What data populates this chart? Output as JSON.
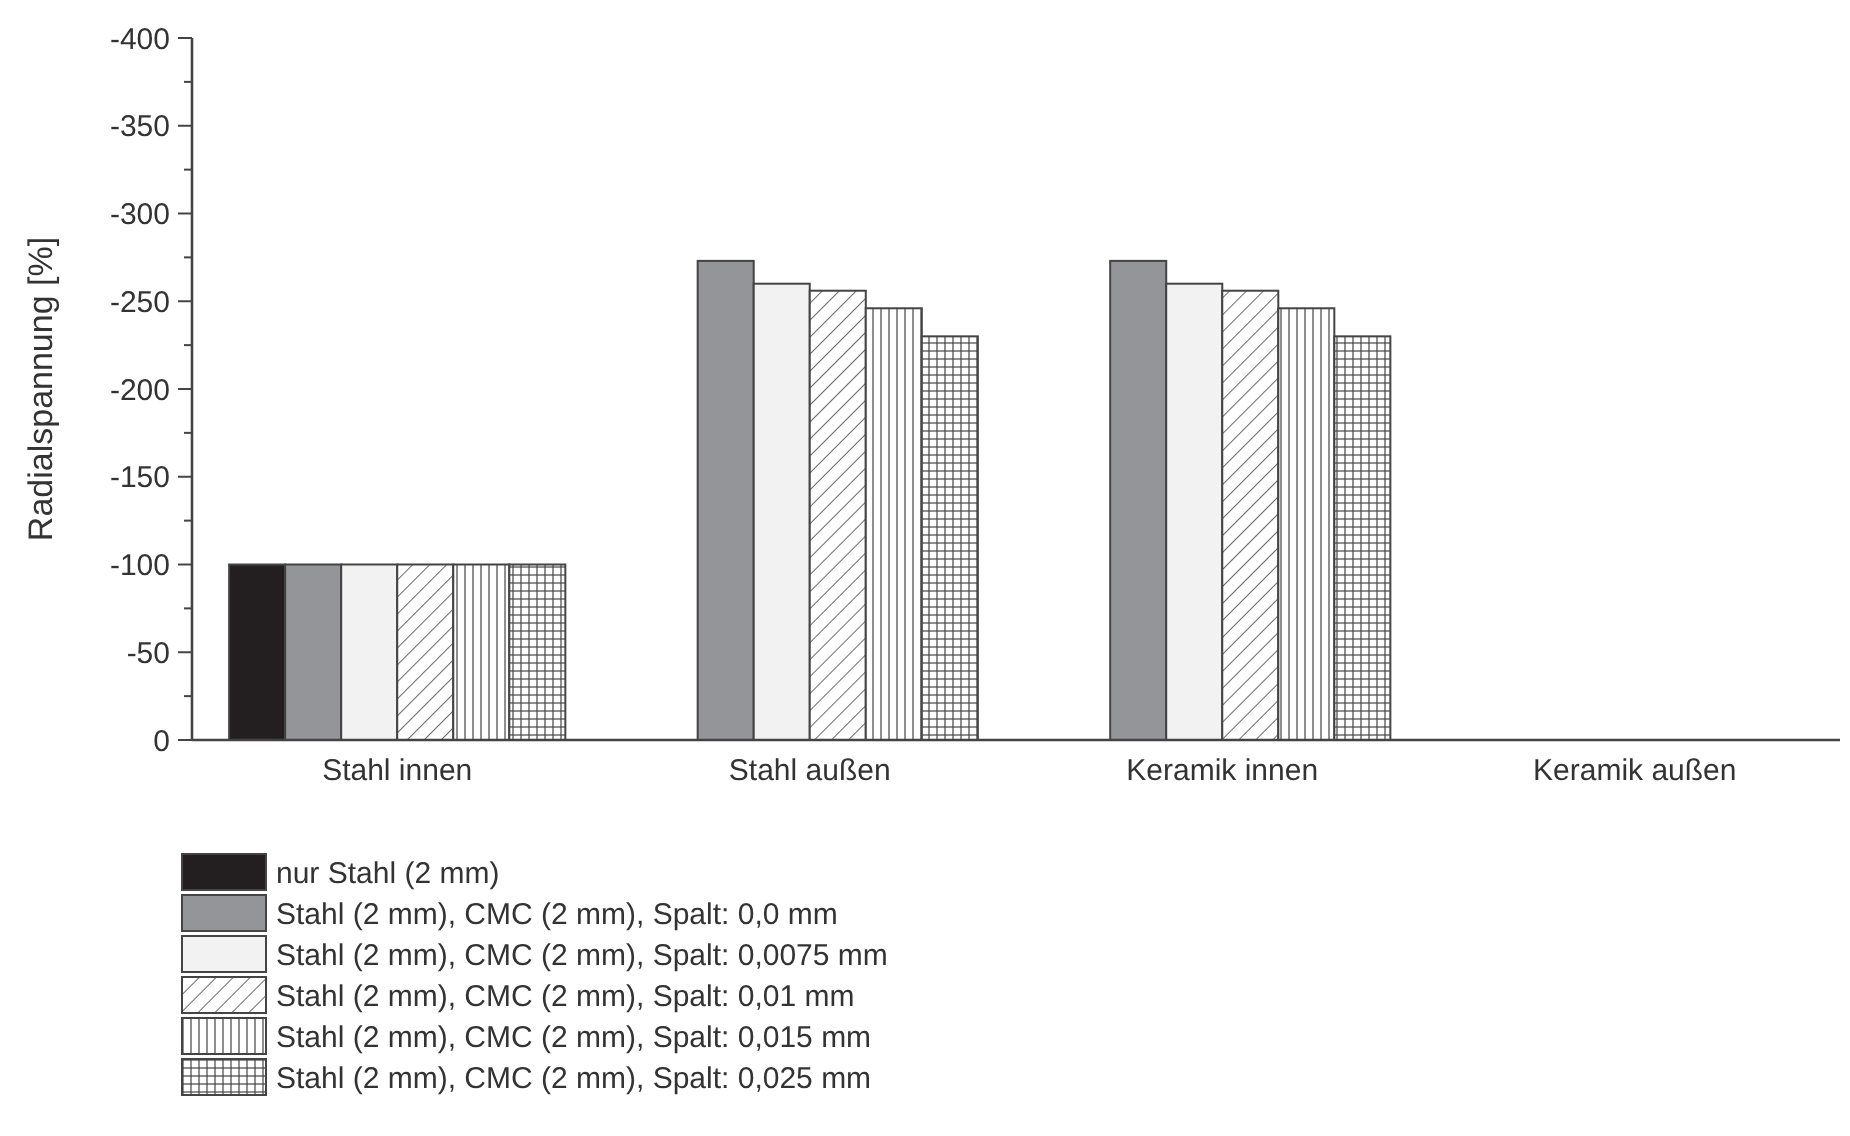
{
  "chart_data": {
    "type": "bar",
    "ylabel": "Radialspannung [%]",
    "categories": [
      "Stahl innen",
      "Stahl außen",
      "Keramik innen",
      "Keramik außen"
    ],
    "series": [
      {
        "name": "nur Stahl (2 mm)",
        "color": "#231f20",
        "values": [
          -100,
          null,
          null,
          null
        ]
      },
      {
        "name": "Stahl (2 mm), CMC (2 mm), Spalt: 0,0 mm",
        "color": "#939598",
        "values": [
          -100,
          -273,
          -273,
          null
        ]
      },
      {
        "name": "Stahl (2 mm), CMC (2 mm), Spalt: 0,0075 mm",
        "color": "#f2f2f2",
        "values": [
          -100,
          -260,
          -260,
          null
        ]
      },
      {
        "name": "Stahl (2 mm), CMC (2 mm), Spalt: 0,01 mm",
        "color": "#444444",
        "values": [
          -100,
          -256,
          -256,
          null
        ]
      },
      {
        "name": "Stahl (2 mm), CMC (2 mm), Spalt: 0,015 mm",
        "color": "#444444",
        "values": [
          -100,
          -246,
          -246,
          null
        ]
      },
      {
        "name": "Stahl (2 mm), CMC (2 mm), Spalt: 0,025 mm",
        "color": "#444444",
        "values": [
          -100,
          -230,
          -230,
          null
        ]
      }
    ],
    "ylim": [
      0,
      -400
    ],
    "yticks": [
      -400,
      -350,
      -300,
      -250,
      -200,
      -150,
      -100,
      -50,
      0
    ],
    "legend": "bottom",
    "grid": false
  }
}
